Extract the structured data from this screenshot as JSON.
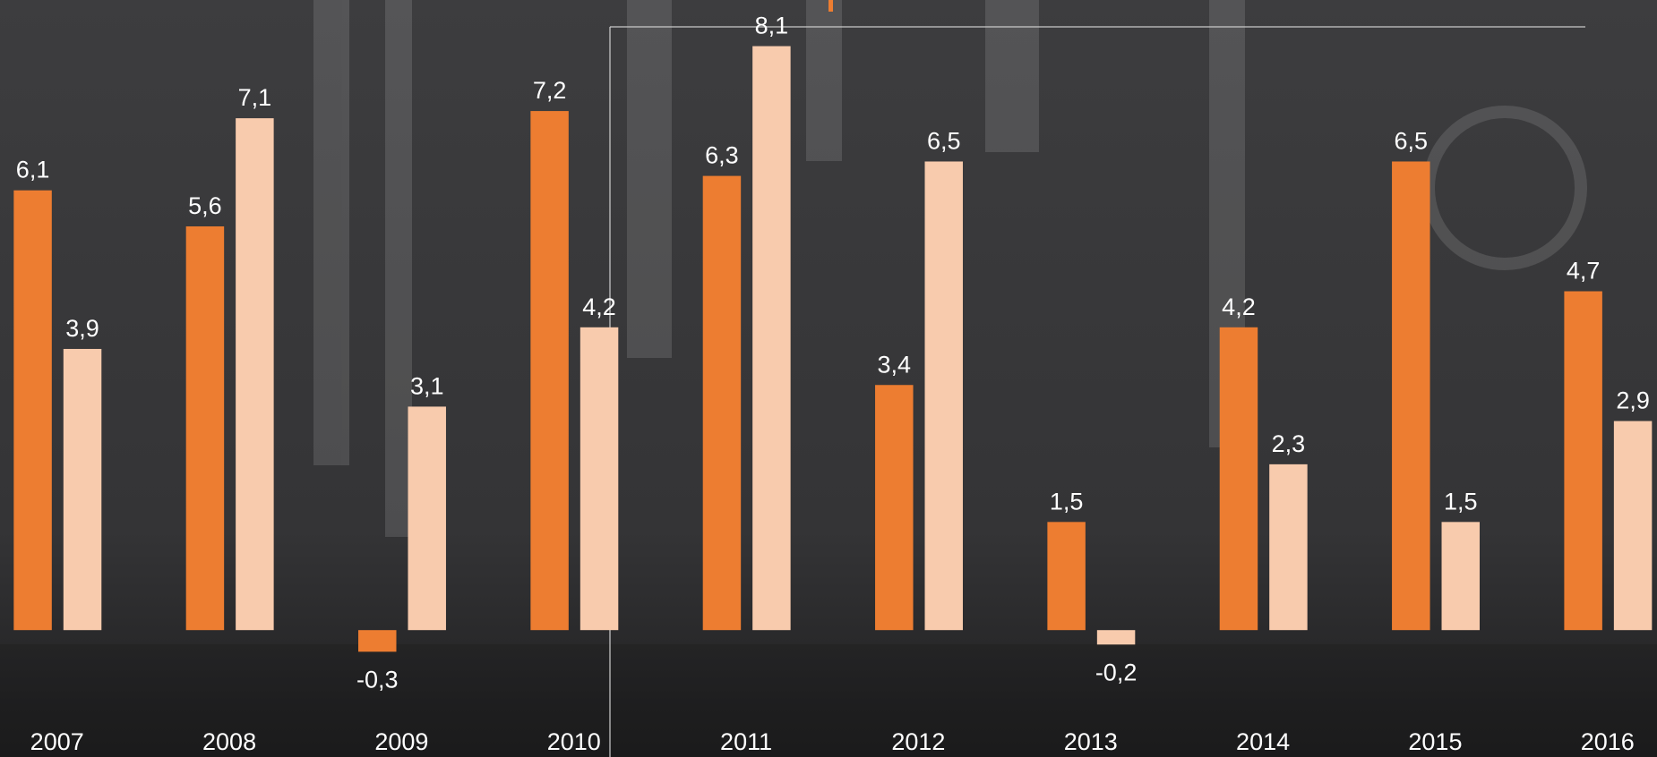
{
  "chart_data": {
    "type": "bar",
    "categories": [
      "2007",
      "2008",
      "2009",
      "2010",
      "2011",
      "2012",
      "2013",
      "2014",
      "2015",
      "2016"
    ],
    "series": [
      {
        "color": "#ed7d31",
        "values": [
          6.1,
          5.6,
          -0.3,
          7.2,
          6.3,
          3.4,
          1.5,
          4.2,
          6.5,
          4.7
        ],
        "value_labels": [
          "6,1",
          "5,6",
          "-0,3",
          "7,2",
          "6,3",
          "3,4",
          "1,5",
          "4,2",
          "6,5",
          "4,7"
        ]
      },
      {
        "color": "#f8cbad",
        "values": [
          3.9,
          7.1,
          3.1,
          4.2,
          8.1,
          6.5,
          -0.2,
          2.3,
          1.5,
          2.9
        ],
        "value_labels": [
          "3,9",
          "7,1",
          "3,1",
          "4,2",
          "8,1",
          "6,5",
          "-0,2",
          "2,3",
          "1,5",
          "2,9"
        ]
      }
    ],
    "ylim": [
      -1.76,
      8.74
    ]
  }
}
